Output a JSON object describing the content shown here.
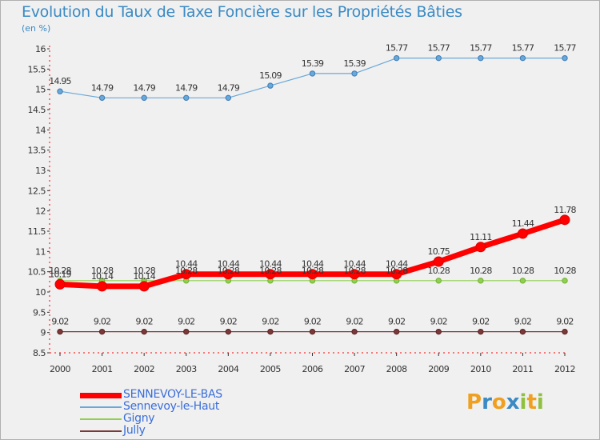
{
  "title": "Evolution du Taux de Taxe Foncière sur les Propriétés Bâties",
  "unit_label": "(en %)",
  "logo": {
    "letters": [
      "P",
      "r",
      "o",
      "x",
      "i",
      "t",
      "i"
    ],
    "colors": [
      "#f0a020",
      "#3a8ac4",
      "#f0a020",
      "#3a8ac4",
      "#90c040",
      "#f0a020",
      "#90c040"
    ]
  },
  "chart_data": {
    "type": "line",
    "title": "Evolution du Taux de Taxe Foncière sur les Propriétés Bâties",
    "ylabel": "(en %)",
    "xlabel": "",
    "ylim": [
      8.5,
      16
    ],
    "yticks": [
      8.5,
      9,
      9.5,
      10,
      10.5,
      11,
      11.5,
      12,
      12.5,
      13,
      13.5,
      14,
      14.5,
      15,
      15.5,
      16
    ],
    "ytick_labels": [
      "8.5",
      "9",
      "9.5",
      "10",
      "10.5",
      "11",
      "11.5",
      "12",
      "12.5",
      "13",
      "13.5",
      "14",
      "14.5",
      "15",
      "15.5",
      "16"
    ],
    "grid": false,
    "x": [
      "2000",
      "2001",
      "2002",
      "2003",
      "2004",
      "2005",
      "2006",
      "2007",
      "2008",
      "2009",
      "2010",
      "2011",
      "2012"
    ],
    "series": [
      {
        "name": "SENNEVOY-LE-BAS",
        "color": "#ff0000",
        "values": [
          10.19,
          10.14,
          10.14,
          10.44,
          10.44,
          10.44,
          10.44,
          10.44,
          10.44,
          10.75,
          11.11,
          11.44,
          11.78
        ],
        "labels": [
          "10.19",
          "10.14",
          "10.14",
          "10.44",
          "10.44",
          "10.44",
          "10.44",
          "10.44",
          "10.44",
          "10.75",
          "11.11",
          "11.44",
          "11.78"
        ]
      },
      {
        "name": "Sennevoy-le-Haut",
        "color": "#6aa8d8",
        "values": [
          14.95,
          14.79,
          14.79,
          14.79,
          14.79,
          15.09,
          15.39,
          15.39,
          15.77,
          15.77,
          15.77,
          15.77,
          15.77
        ],
        "labels": [
          "14.95",
          "14.79",
          "14.79",
          "14.79",
          "14.79",
          "15.09",
          "15.39",
          "15.39",
          "15.77",
          "15.77",
          "15.77",
          "15.77",
          "15.77"
        ]
      },
      {
        "name": "Gigny",
        "color": "#90d050",
        "values": [
          10.28,
          10.28,
          10.28,
          10.28,
          10.28,
          10.28,
          10.28,
          10.28,
          10.28,
          10.28,
          10.28,
          10.28,
          10.28
        ],
        "labels": [
          "10.28",
          "10.28",
          "10.28",
          "10.28",
          "10.28",
          "10.28",
          "10.28",
          "10.28",
          "10.28",
          "10.28",
          "10.28",
          "10.28",
          "10.28"
        ]
      },
      {
        "name": "Jully",
        "color": "#7a3a3a",
        "values": [
          9.02,
          9.02,
          9.02,
          9.02,
          9.02,
          9.02,
          9.02,
          9.02,
          9.02,
          9.02,
          9.02,
          9.02,
          9.02
        ],
        "labels": [
          "9.02",
          "9.02",
          "9.02",
          "9.02",
          "9.02",
          "9.02",
          "9.02",
          "9.02",
          "9.02",
          "9.02",
          "9.02",
          "9.02",
          "9.02"
        ]
      }
    ]
  }
}
